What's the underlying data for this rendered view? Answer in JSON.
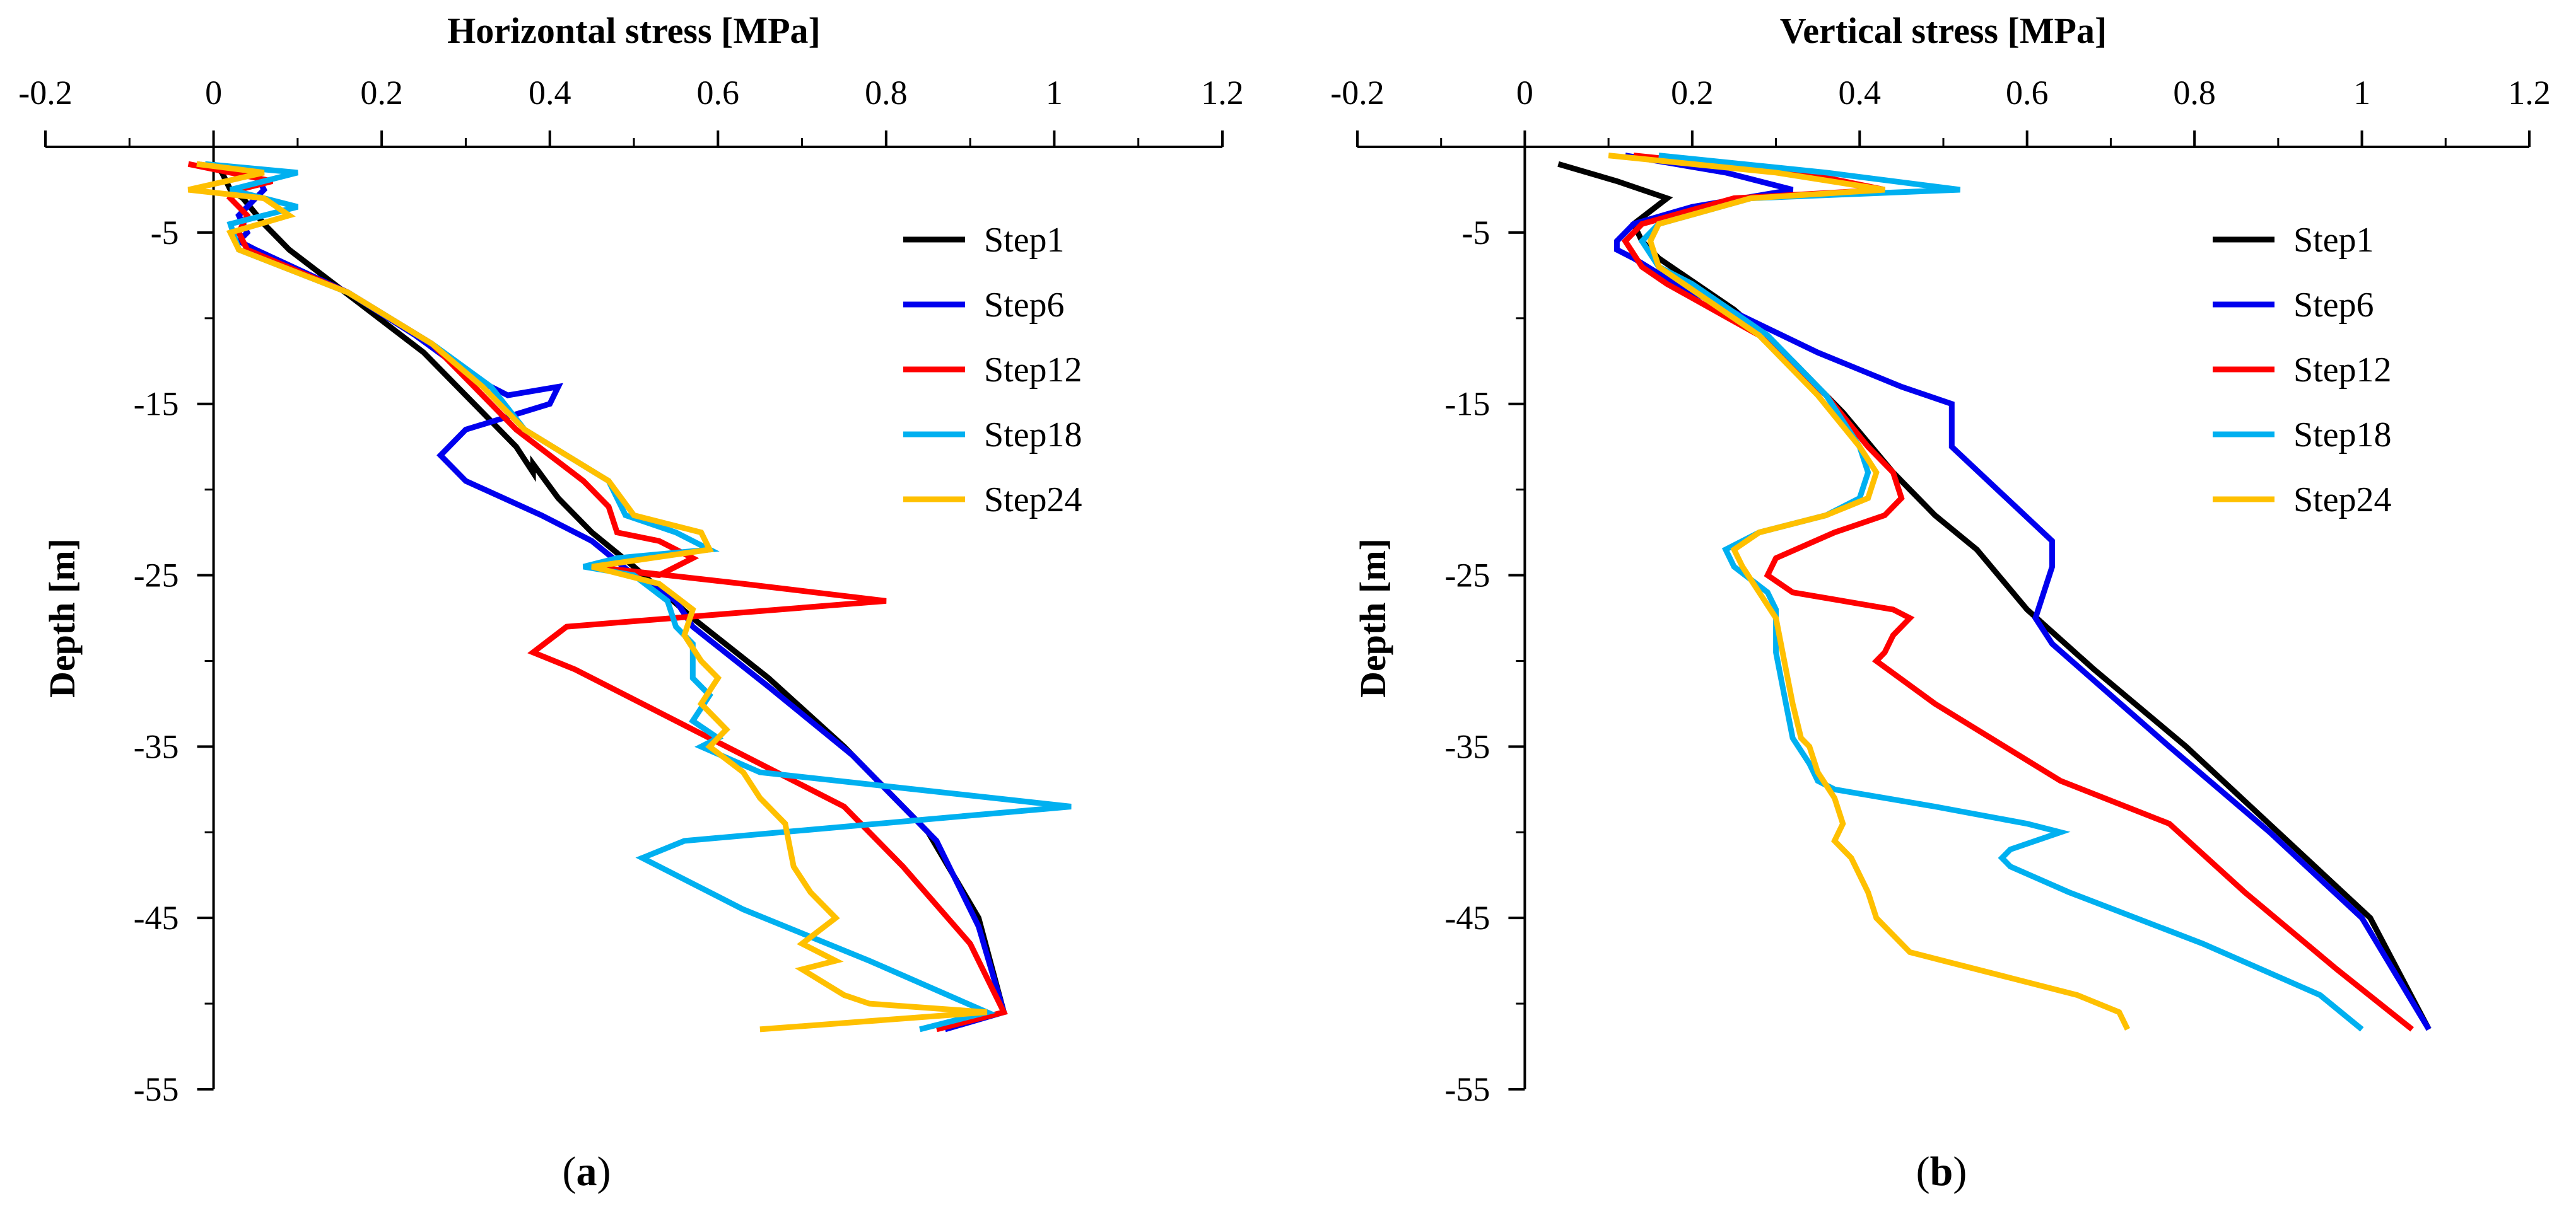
{
  "chart_data": [
    {
      "type": "line",
      "panel_label": "a",
      "title": "Horizontal stress [MPa]",
      "xlabel": "Horizontal stress [MPa]",
      "ylabel": "Depth [m]",
      "xlim": [
        -0.2,
        1.2
      ],
      "ylim": [
        -55,
        0
      ],
      "x_ticks": [
        -0.2,
        0,
        0.2,
        0.4,
        0.6,
        0.8,
        1,
        1.2
      ],
      "x_tick_labels": [
        "-0.2",
        "0",
        "0.2",
        "0.4",
        "0.6",
        "0.8",
        "1",
        "1.2"
      ],
      "y_ticks": [
        -5,
        -15,
        -25,
        -35,
        -45,
        -55
      ],
      "y_tick_labels": [
        "-5",
        "-15",
        "-25",
        "-35",
        "-45",
        "-55"
      ],
      "x_axis_position": "top",
      "legend_position": "top-right",
      "grid": false,
      "series": [
        {
          "name": "Step1",
          "color": "#000000",
          "x": [
            0.0,
            0.01,
            0.02,
            0.035,
            0.06,
            0.09,
            0.17,
            0.25,
            0.3,
            0.36,
            0.38,
            0.38,
            0.41,
            0.45,
            0.5,
            0.57,
            0.66,
            0.75,
            0.85,
            0.91,
            0.94
          ],
          "y": [
            -1.0,
            -1.5,
            -2.5,
            -3.0,
            -4.5,
            -6.0,
            -9.0,
            -12.0,
            -14.5,
            -17.5,
            -19.0,
            -18.5,
            -20.5,
            -22.5,
            -24.5,
            -27.5,
            -31.0,
            -35.0,
            -40.0,
            -45.0,
            -50.5
          ]
        },
        {
          "name": "Step6",
          "color": "#0000ee",
          "x": [
            -0.02,
            0.05,
            0.06,
            0.05,
            0.03,
            0.04,
            0.03,
            0.05,
            0.16,
            0.24,
            0.31,
            0.35,
            0.41,
            0.4,
            0.3,
            0.27,
            0.3,
            0.39,
            0.45,
            0.5,
            0.55,
            0.57,
            0.66,
            0.76,
            0.86,
            0.91,
            0.94,
            0.87
          ],
          "y": [
            -1.0,
            -1.5,
            -2.5,
            -3.0,
            -4.0,
            -5.0,
            -5.5,
            -6.0,
            -8.5,
            -11.0,
            -13.5,
            -14.5,
            -14.0,
            -15.0,
            -16.5,
            -18.0,
            -19.5,
            -21.5,
            -23.0,
            -25.0,
            -26.5,
            -28.0,
            -31.5,
            -35.5,
            -40.5,
            -45.5,
            -50.5,
            -51.5
          ]
        },
        {
          "name": "Step12",
          "color": "#ff0000",
          "x": [
            -0.03,
            0.02,
            0.07,
            0.03,
            0.02,
            0.04,
            0.03,
            0.04,
            0.16,
            0.26,
            0.31,
            0.36,
            0.4,
            0.44,
            0.47,
            0.48,
            0.53,
            0.57,
            0.53,
            0.45,
            0.63,
            0.8,
            0.42,
            0.38,
            0.43,
            0.57,
            0.75,
            0.82,
            0.9,
            0.94,
            0.86
          ],
          "y": [
            -1.0,
            -1.5,
            -2.0,
            -2.5,
            -3.0,
            -4.0,
            -5.0,
            -6.0,
            -8.5,
            -11.5,
            -14.0,
            -16.5,
            -18.0,
            -19.5,
            -21.0,
            -22.5,
            -23.0,
            -24.0,
            -25.0,
            -24.5,
            -25.5,
            -26.5,
            -28.0,
            -29.5,
            -30.5,
            -34.0,
            -38.5,
            -42.0,
            -46.5,
            -50.5,
            -51.5
          ]
        },
        {
          "name": "Step18",
          "color": "#00b0f0",
          "x": [
            -0.01,
            0.1,
            0.02,
            0.06,
            0.1,
            0.02,
            0.03,
            0.16,
            0.26,
            0.33,
            0.37,
            0.42,
            0.47,
            0.49,
            0.55,
            0.59,
            0.48,
            0.44,
            0.5,
            0.54,
            0.55,
            0.57,
            0.57,
            0.59,
            0.57,
            0.6,
            0.58,
            0.65,
            1.02,
            0.56,
            0.51,
            0.63,
            0.78,
            0.92,
            0.84
          ],
          "y": [
            -1.0,
            -1.5,
            -2.5,
            -3.0,
            -3.5,
            -4.5,
            -6.0,
            -8.5,
            -11.5,
            -14.0,
            -16.5,
            -18.0,
            -19.5,
            -21.5,
            -22.5,
            -23.5,
            -24.0,
            -24.5,
            -25.0,
            -26.5,
            -28.0,
            -29.0,
            -31.0,
            -32.0,
            -33.5,
            -34.5,
            -35.0,
            -36.5,
            -38.5,
            -40.5,
            -41.5,
            -44.5,
            -47.5,
            -50.5,
            -51.5
          ]
        },
        {
          "name": "Step24",
          "color": "#ffc000",
          "x": [
            -0.02,
            0.06,
            -0.03,
            0.06,
            0.09,
            0.02,
            0.03,
            0.16,
            0.26,
            0.32,
            0.37,
            0.42,
            0.47,
            0.5,
            0.58,
            0.59,
            0.45,
            0.53,
            0.57,
            0.56,
            0.58,
            0.6,
            0.58,
            0.61,
            0.59,
            0.63,
            0.65,
            0.68,
            0.69,
            0.71,
            0.74,
            0.7,
            0.74,
            0.7,
            0.75,
            0.78,
            0.92,
            0.65
          ],
          "y": [
            -1.0,
            -1.5,
            -2.5,
            -3.0,
            -4.0,
            -5.0,
            -6.0,
            -8.5,
            -11.5,
            -14.0,
            -16.5,
            -18.0,
            -19.5,
            -21.5,
            -22.5,
            -23.5,
            -24.5,
            -25.5,
            -27.0,
            -28.5,
            -30.0,
            -31.0,
            -32.5,
            -34.0,
            -35.0,
            -36.5,
            -38.0,
            -39.5,
            -42.0,
            -43.5,
            -45.0,
            -46.5,
            -47.5,
            -48.0,
            -49.5,
            -50.0,
            -50.5,
            -51.5
          ]
        }
      ]
    },
    {
      "type": "line",
      "panel_label": "b",
      "title": "Vertical stress [MPa]",
      "xlabel": "Vertical stress [MPa]",
      "ylabel": "Depth [m]",
      "xlim": [
        -0.2,
        1.2
      ],
      "ylim": [
        -55,
        0
      ],
      "x_ticks": [
        -0.2,
        0,
        0.2,
        0.4,
        0.6,
        0.8,
        1,
        1.2
      ],
      "x_tick_labels": [
        "-0.2",
        "0",
        "0.2",
        "0.4",
        "0.6",
        "0.8",
        "1",
        "1.2"
      ],
      "y_ticks": [
        -5,
        -15,
        -25,
        -35,
        -45,
        -55
      ],
      "y_tick_labels": [
        "-5",
        "-15",
        "-25",
        "-35",
        "-45",
        "-55"
      ],
      "x_axis_position": "top",
      "legend_position": "top-right",
      "grid": false,
      "series": [
        {
          "name": "Step1",
          "color": "#000000",
          "x": [
            0.04,
            0.11,
            0.17,
            0.13,
            0.14,
            0.16,
            0.25,
            0.32,
            0.38,
            0.44,
            0.49,
            0.54,
            0.6,
            0.68,
            0.79,
            0.9,
            1.01,
            1.08
          ],
          "y": [
            -1.0,
            -2.0,
            -3.0,
            -4.5,
            -5.5,
            -6.5,
            -9.5,
            -12.5,
            -15.5,
            -19.0,
            -21.5,
            -23.5,
            -27.0,
            -30.5,
            -35.0,
            -40.0,
            -45.0,
            -51.5
          ]
        },
        {
          "name": "Step6",
          "color": "#0000ee",
          "x": [
            0.12,
            0.24,
            0.32,
            0.2,
            0.13,
            0.11,
            0.11,
            0.13,
            0.18,
            0.35,
            0.45,
            0.51,
            0.51,
            0.63,
            0.63,
            0.61,
            0.63,
            0.77,
            0.89,
            1.0,
            1.08
          ],
          "y": [
            -0.5,
            -1.5,
            -2.5,
            -3.5,
            -4.5,
            -5.5,
            -6.0,
            -6.5,
            -8.0,
            -12.0,
            -14.0,
            -15.0,
            -17.5,
            -23.0,
            -24.5,
            -27.5,
            -29.0,
            -35.0,
            -40.0,
            -45.0,
            -51.5
          ]
        },
        {
          "name": "Step12",
          "color": "#ff0000",
          "x": [
            0.13,
            0.33,
            0.43,
            0.25,
            0.14,
            0.12,
            0.14,
            0.17,
            0.28,
            0.36,
            0.41,
            0.44,
            0.45,
            0.43,
            0.37,
            0.3,
            0.29,
            0.32,
            0.44,
            0.46,
            0.44,
            0.43,
            0.42,
            0.49,
            0.64,
            0.77,
            0.86,
            0.97,
            1.06
          ],
          "y": [
            -0.5,
            -1.5,
            -2.5,
            -3.0,
            -4.5,
            -5.5,
            -7.0,
            -8.0,
            -11.0,
            -14.5,
            -17.5,
            -19.0,
            -20.5,
            -21.5,
            -22.5,
            -24.0,
            -25.0,
            -26.0,
            -27.0,
            -27.5,
            -28.5,
            -29.5,
            -30.0,
            -32.5,
            -37.0,
            -39.5,
            -43.5,
            -48.0,
            -51.5
          ]
        },
        {
          "name": "Step18",
          "color": "#00b0f0",
          "x": [
            0.16,
            0.36,
            0.52,
            0.27,
            0.16,
            0.14,
            0.16,
            0.2,
            0.29,
            0.36,
            0.4,
            0.41,
            0.4,
            0.36,
            0.28,
            0.24,
            0.25,
            0.29,
            0.3,
            0.3,
            0.31,
            0.32,
            0.34,
            0.35,
            0.37,
            0.49,
            0.6,
            0.64,
            0.58,
            0.57,
            0.58,
            0.65,
            0.81,
            0.95,
            1.0
          ],
          "y": [
            -0.5,
            -1.5,
            -2.5,
            -3.0,
            -4.5,
            -5.5,
            -7.0,
            -8.0,
            -11.0,
            -14.5,
            -17.5,
            -19.0,
            -20.5,
            -21.5,
            -22.5,
            -23.5,
            -24.5,
            -26.0,
            -27.0,
            -29.5,
            -32.0,
            -34.5,
            -36.0,
            -37.0,
            -37.5,
            -38.5,
            -39.5,
            -40.0,
            -41.0,
            -41.5,
            -42.0,
            -43.5,
            -46.5,
            -49.5,
            -51.5
          ]
        },
        {
          "name": "Step24",
          "color": "#ffc000",
          "x": [
            0.1,
            0.3,
            0.43,
            0.27,
            0.16,
            0.15,
            0.16,
            0.19,
            0.28,
            0.35,
            0.4,
            0.42,
            0.41,
            0.36,
            0.28,
            0.25,
            0.26,
            0.28,
            0.3,
            0.31,
            0.32,
            0.33,
            0.34,
            0.35,
            0.37,
            0.38,
            0.37,
            0.39,
            0.4,
            0.41,
            0.42,
            0.44,
            0.46,
            0.5,
            0.58,
            0.66,
            0.71,
            0.72
          ],
          "y": [
            -0.5,
            -1.5,
            -2.5,
            -3.0,
            -4.5,
            -5.5,
            -7.0,
            -8.0,
            -11.0,
            -14.5,
            -17.5,
            -19.0,
            -20.5,
            -21.5,
            -22.5,
            -23.5,
            -24.5,
            -26.0,
            -27.5,
            -30.0,
            -32.5,
            -34.5,
            -35.0,
            -36.5,
            -38.0,
            -39.5,
            -40.5,
            -41.5,
            -42.5,
            -43.5,
            -45.0,
            -46.0,
            -47.0,
            -47.5,
            -48.5,
            -49.5,
            -50.5,
            -51.5
          ]
        }
      ]
    }
  ]
}
